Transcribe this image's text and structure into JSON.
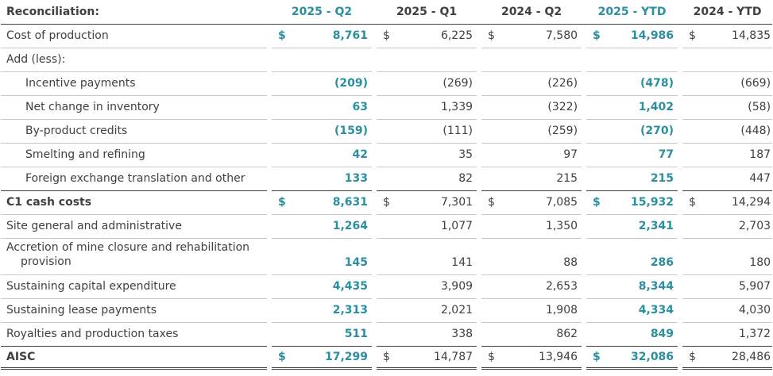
{
  "header": {
    "label": "Reconciliation:",
    "columns": [
      "2025 - Q2",
      "2025 - Q1",
      "2024 - Q2",
      "2025 - YTD",
      "2024 - YTD"
    ]
  },
  "currency_symbol": "$",
  "rows": [
    {
      "label": "Cost of production",
      "values": [
        "8,761",
        "6,225",
        "7,580",
        "14,986",
        "14,835"
      ]
    },
    {
      "label": "Add (less):",
      "values": [
        "",
        "",
        "",
        "",
        ""
      ]
    },
    {
      "label": "Incentive payments",
      "values": [
        "(209)",
        "(269)",
        "(226)",
        "(478)",
        "(669)"
      ]
    },
    {
      "label": "Net change in inventory",
      "values": [
        "63",
        "1,339",
        "(322)",
        "1,402",
        "(58)"
      ]
    },
    {
      "label": "By-product credits",
      "values": [
        "(159)",
        "(111)",
        "(259)",
        "(270)",
        "(448)"
      ]
    },
    {
      "label": "Smelting and refining",
      "values": [
        "42",
        "35",
        "97",
        "77",
        "187"
      ]
    },
    {
      "label": "Foreign exchange translation and other",
      "values": [
        "133",
        "82",
        "215",
        "215",
        "447"
      ]
    },
    {
      "label": "C1 cash costs",
      "values": [
        "8,631",
        "7,301",
        "7,085",
        "15,932",
        "14,294"
      ]
    },
    {
      "label": "Site general and administrative",
      "values": [
        "1,264",
        "1,077",
        "1,350",
        "2,341",
        "2,703"
      ]
    },
    {
      "label_line1": "Accretion of mine closure and rehabilitation",
      "label_line2": "provision",
      "values": [
        "145",
        "141",
        "88",
        "286",
        "180"
      ]
    },
    {
      "label": "Sustaining capital expenditure",
      "values": [
        "4,435",
        "3,909",
        "2,653",
        "8,344",
        "5,907"
      ]
    },
    {
      "label": "Sustaining lease payments",
      "values": [
        "2,313",
        "2,021",
        "1,908",
        "4,334",
        "4,030"
      ]
    },
    {
      "label": "Royalties and production taxes",
      "values": [
        "511",
        "338",
        "862",
        "849",
        "1,372"
      ]
    },
    {
      "label": "AISC",
      "values": [
        "17,299",
        "14,787",
        "13,946",
        "32,086",
        "28,486"
      ]
    }
  ],
  "colors": {
    "accent": "#2a8fa0",
    "text": "#404040"
  }
}
